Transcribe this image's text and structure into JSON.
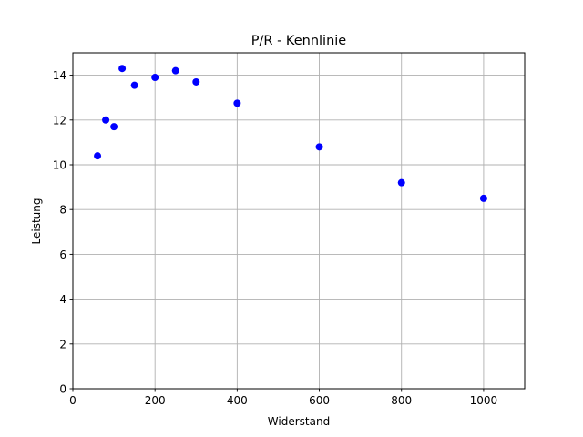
{
  "chart_data": {
    "type": "scatter",
    "title": "P/R - Kennlinie",
    "xlabel": "Widerstand",
    "ylabel": "Leistung",
    "xlim": [
      0,
      1100
    ],
    "ylim": [
      0,
      15
    ],
    "xticks": [
      0,
      200,
      400,
      600,
      800,
      1000
    ],
    "yticks": [
      0,
      2,
      4,
      6,
      8,
      10,
      12,
      14
    ],
    "grid": true,
    "marker_color": "#0000ff",
    "points": [
      {
        "x": 60,
        "y": 10.4
      },
      {
        "x": 80,
        "y": 12.0
      },
      {
        "x": 100,
        "y": 11.7
      },
      {
        "x": 120,
        "y": 14.3
      },
      {
        "x": 150,
        "y": 13.55
      },
      {
        "x": 200,
        "y": 13.9
      },
      {
        "x": 250,
        "y": 14.2
      },
      {
        "x": 300,
        "y": 13.7
      },
      {
        "x": 400,
        "y": 12.75
      },
      {
        "x": 600,
        "y": 10.8
      },
      {
        "x": 800,
        "y": 9.2
      },
      {
        "x": 1000,
        "y": 8.5
      }
    ]
  }
}
